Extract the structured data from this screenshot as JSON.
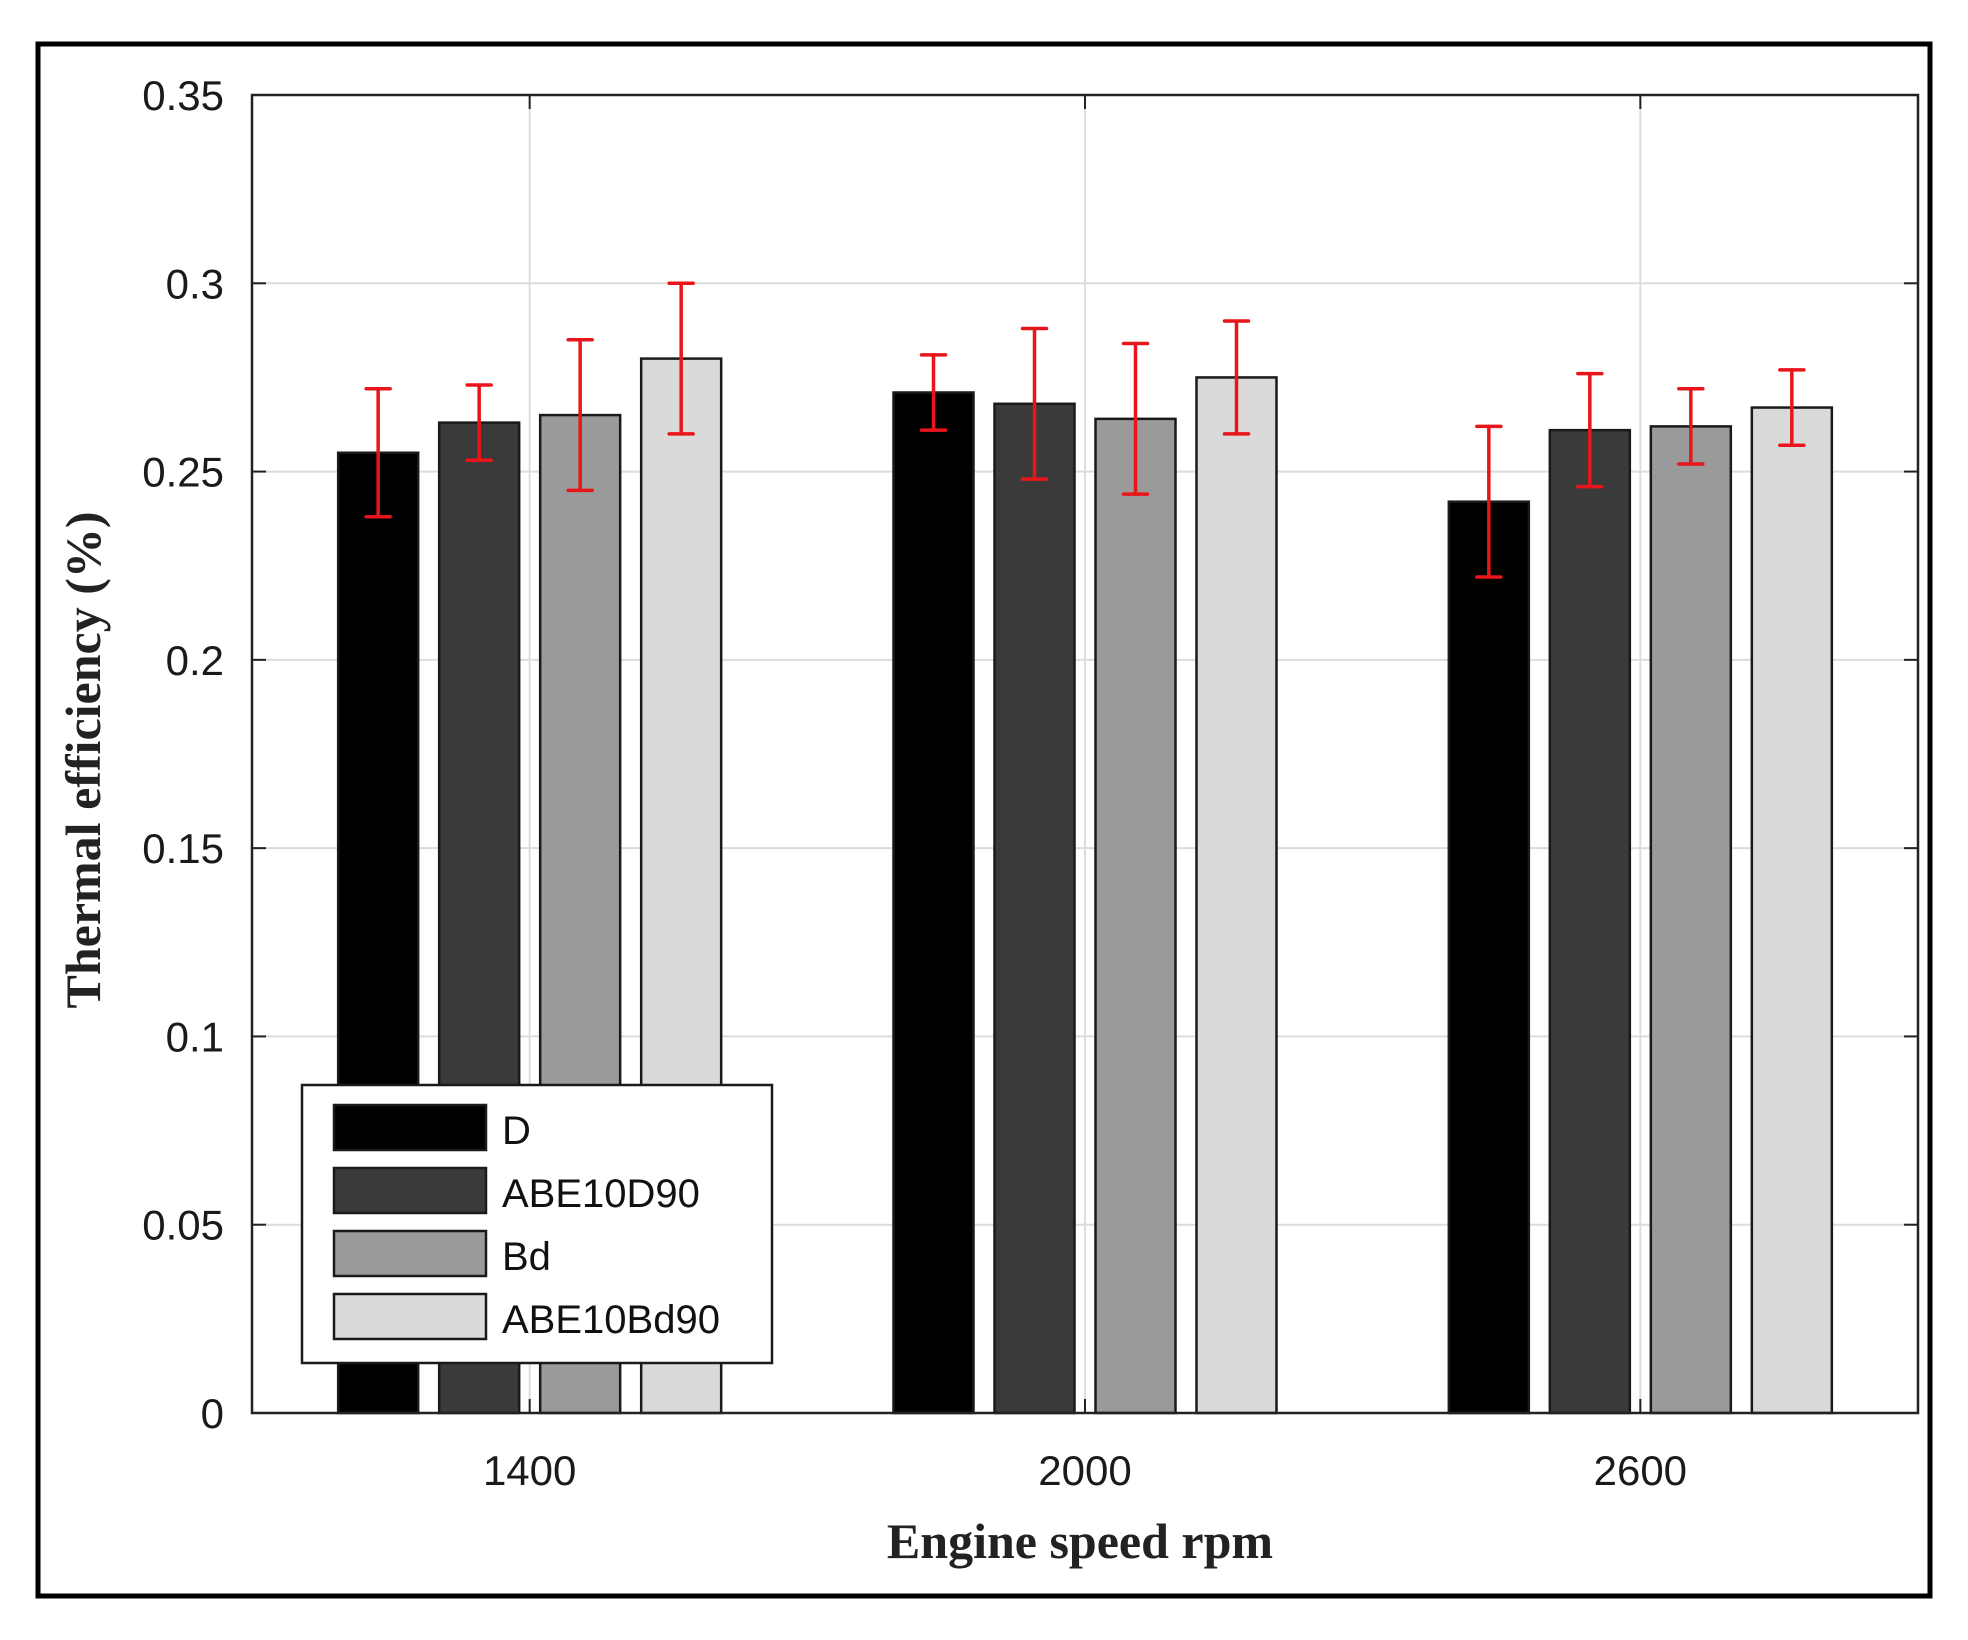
{
  "chart_data": {
    "type": "bar",
    "xlabel": "Engine speed rpm",
    "ylabel": "Thermal efficiency (%)",
    "categories": [
      "1400",
      "2000",
      "2600"
    ],
    "ylim": [
      0,
      0.35
    ],
    "yticks": [
      "0",
      "0.05",
      "0.1",
      "0.15",
      "0.2",
      "0.25",
      "0.3",
      "0.35"
    ],
    "grid": true,
    "legend_position": "bottom-left",
    "error_bar_color": "#e8161b",
    "series": [
      {
        "name": "D",
        "color": "#000000",
        "values": [
          0.255,
          0.271,
          0.242
        ],
        "error_low": [
          0.238,
          0.261,
          0.222
        ],
        "error_high": [
          0.272,
          0.281,
          0.262
        ]
      },
      {
        "name": "ABE10D90",
        "color": "#3a3a3a",
        "values": [
          0.263,
          0.268,
          0.261
        ],
        "error_low": [
          0.253,
          0.248,
          0.246
        ],
        "error_high": [
          0.273,
          0.288,
          0.276
        ]
      },
      {
        "name": "Bd",
        "color": "#9a9a9a",
        "values": [
          0.265,
          0.264,
          0.262
        ],
        "error_low": [
          0.245,
          0.244,
          0.252
        ],
        "error_high": [
          0.285,
          0.284,
          0.272
        ]
      },
      {
        "name": "ABE10Bd90",
        "color": "#dadada",
        "values": [
          0.28,
          0.275,
          0.267
        ],
        "error_low": [
          0.26,
          0.26,
          0.257
        ],
        "error_high": [
          0.3,
          0.29,
          0.277
        ]
      }
    ]
  }
}
